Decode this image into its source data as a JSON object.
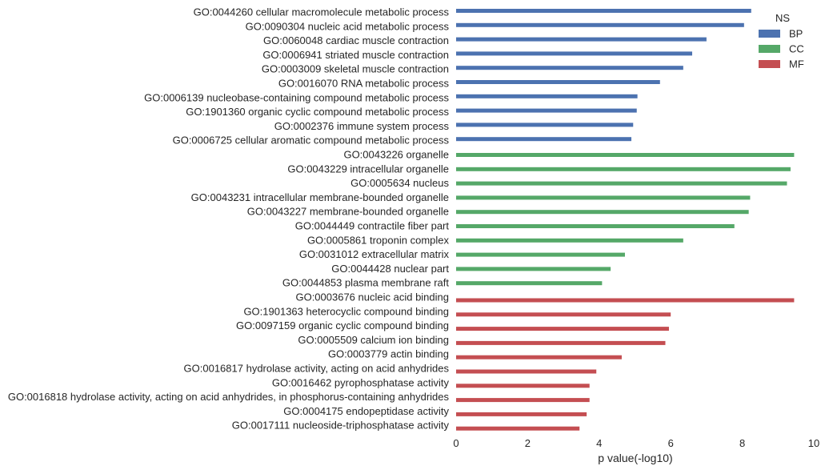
{
  "chart_data": {
    "type": "bar",
    "orientation": "horizontal",
    "xlabel": "p value(-log10)",
    "xlim": [
      0,
      10
    ],
    "xticks": [
      "0",
      "2",
      "4",
      "6",
      "8",
      "10"
    ],
    "grid": false,
    "legend": {
      "title": "NS",
      "placement": "top-right",
      "entries": [
        {
          "name": "BP",
          "color": "#4c72b0"
        },
        {
          "name": "CC",
          "color": "#55a868"
        },
        {
          "name": "MF",
          "color": "#c44e52"
        }
      ]
    },
    "bars": [
      {
        "label": "GO:0044260 cellular macromolecule metabolic process",
        "ns": "BP",
        "value": 8.25
      },
      {
        "label": "GO:0090304 nucleic acid metabolic process",
        "ns": "BP",
        "value": 8.05
      },
      {
        "label": "GO:0060048 cardiac muscle contraction",
        "ns": "BP",
        "value": 7.0
      },
      {
        "label": "GO:0006941 striated muscle contraction",
        "ns": "BP",
        "value": 6.6
      },
      {
        "label": "GO:0003009 skeletal muscle contraction",
        "ns": "BP",
        "value": 6.35
      },
      {
        "label": "GO:0016070 RNA metabolic process",
        "ns": "BP",
        "value": 5.7
      },
      {
        "label": "GO:0006139 nucleobase-containing compound metabolic process",
        "ns": "BP",
        "value": 5.07
      },
      {
        "label": "GO:1901360 organic cyclic compound metabolic process",
        "ns": "BP",
        "value": 5.05
      },
      {
        "label": "GO:0002376 immune system process",
        "ns": "BP",
        "value": 4.95
      },
      {
        "label": "GO:0006725 cellular aromatic compound metabolic process",
        "ns": "BP",
        "value": 4.9
      },
      {
        "label": "GO:0043226 organelle",
        "ns": "CC",
        "value": 9.45
      },
      {
        "label": "GO:0043229 intracellular organelle",
        "ns": "CC",
        "value": 9.35
      },
      {
        "label": "GO:0005634 nucleus",
        "ns": "CC",
        "value": 9.25
      },
      {
        "label": "GO:0043231 intracellular membrane-bounded organelle",
        "ns": "CC",
        "value": 8.22
      },
      {
        "label": "GO:0043227 membrane-bounded organelle",
        "ns": "CC",
        "value": 8.18
      },
      {
        "label": "GO:0044449 contractile fiber part",
        "ns": "CC",
        "value": 7.78
      },
      {
        "label": "GO:0005861 troponin complex",
        "ns": "CC",
        "value": 6.35
      },
      {
        "label": "GO:0031012 extracellular matrix",
        "ns": "CC",
        "value": 4.72
      },
      {
        "label": "GO:0044428 nuclear part",
        "ns": "CC",
        "value": 4.32
      },
      {
        "label": "GO:0044853 plasma membrane raft",
        "ns": "CC",
        "value": 4.08
      },
      {
        "label": "GO:0003676 nucleic acid binding",
        "ns": "MF",
        "value": 9.45
      },
      {
        "label": "GO:1901363 heterocyclic compound binding",
        "ns": "MF",
        "value": 6.0
      },
      {
        "label": "GO:0097159 organic cyclic compound binding",
        "ns": "MF",
        "value": 5.95
      },
      {
        "label": "GO:0005509 calcium ion binding",
        "ns": "MF",
        "value": 5.85
      },
      {
        "label": "GO:0003779 actin binding",
        "ns": "MF",
        "value": 4.63
      },
      {
        "label": "GO:0016817 hydrolase activity, acting on acid anhydrides",
        "ns": "MF",
        "value": 3.92
      },
      {
        "label": "GO:0016462 pyrophosphatase activity",
        "ns": "MF",
        "value": 3.73
      },
      {
        "label": "GO:0016818 hydrolase activity, acting on acid anhydrides, in phosphorus-containing anhydrides",
        "ns": "MF",
        "value": 3.73
      },
      {
        "label": "GO:0004175 endopeptidase activity",
        "ns": "MF",
        "value": 3.65
      },
      {
        "label": "GO:0017111 nucleoside-triphosphatase activity",
        "ns": "MF",
        "value": 3.45
      }
    ]
  }
}
